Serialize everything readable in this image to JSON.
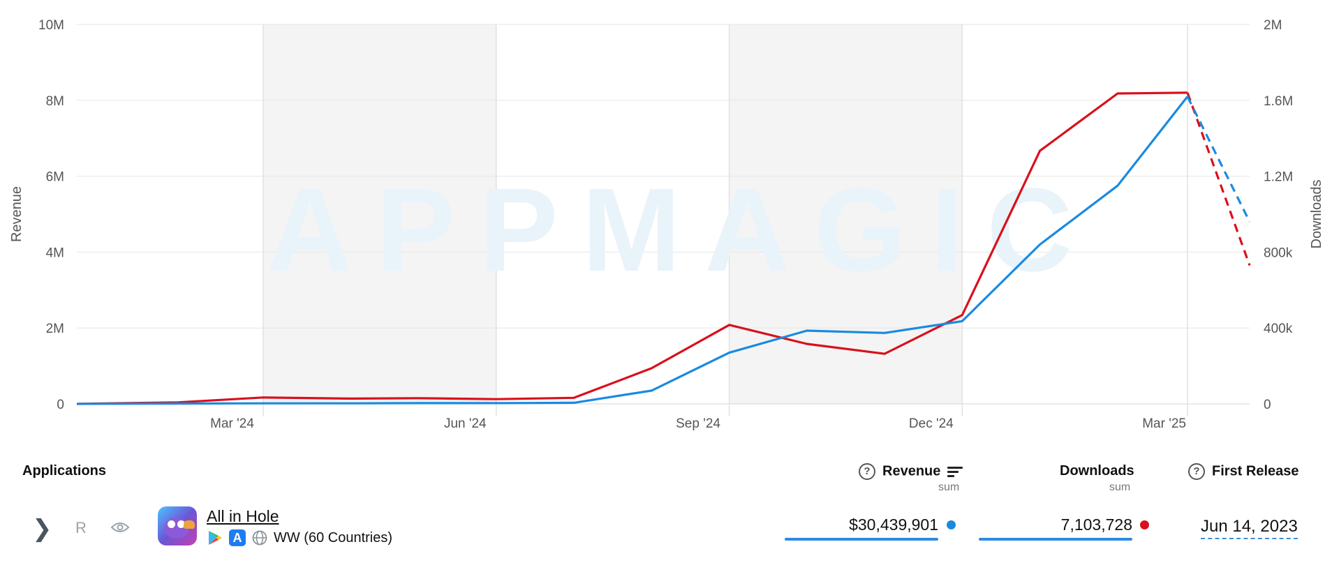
{
  "chart_data": {
    "type": "line",
    "watermark": "APPMAGIC",
    "x_labels": [
      "Mar '24",
      "Jun '24",
      "Sep '24",
      "Dec '24",
      "Mar '25"
    ],
    "x_label_months": [
      2,
      5,
      8,
      11,
      14
    ],
    "shaded_quarters": [
      [
        2,
        5
      ],
      [
        8,
        11
      ]
    ],
    "gridline_months": [
      2.4,
      5.4,
      8.4,
      11.4,
      14.3
    ],
    "x_range": [
      0,
      15.1
    ],
    "left_axis": {
      "title": "Revenue",
      "ticks": [
        "0",
        "2M",
        "4M",
        "6M",
        "8M",
        "10M"
      ],
      "range": [
        0,
        10000000
      ]
    },
    "right_axis": {
      "title": "Downloads",
      "ticks": [
        "0",
        "400k",
        "800k",
        "1.2M",
        "1.6M",
        "2M"
      ],
      "range": [
        0,
        2000000
      ]
    },
    "series": [
      {
        "name": "Revenue",
        "axis": "left",
        "color": "#1a8ae0",
        "points": [
          [
            0,
            0
          ],
          [
            1.3,
            10000
          ],
          [
            2.4,
            15000
          ],
          [
            3.5,
            15000
          ],
          [
            4.4,
            20000
          ],
          [
            5.4,
            20000
          ],
          [
            6.4,
            30000
          ],
          [
            7.4,
            350000
          ],
          [
            8.4,
            1350000
          ],
          [
            9.4,
            1930000
          ],
          [
            10.4,
            1870000
          ],
          [
            11.4,
            2180000
          ],
          [
            12.4,
            4200000
          ],
          [
            13.4,
            5750000
          ],
          [
            14.3,
            8100000
          ]
        ],
        "projection": [
          [
            14.3,
            8100000
          ],
          [
            15.1,
            4800000
          ]
        ]
      },
      {
        "name": "Downloads",
        "axis": "right",
        "color": "#d9101c",
        "points": [
          [
            0,
            0
          ],
          [
            1.3,
            8000
          ],
          [
            2.4,
            34000
          ],
          [
            3.5,
            28000
          ],
          [
            4.4,
            30000
          ],
          [
            5.4,
            25000
          ],
          [
            6.4,
            32000
          ],
          [
            7.4,
            188000
          ],
          [
            8.4,
            416000
          ],
          [
            9.4,
            316000
          ],
          [
            10.4,
            264000
          ],
          [
            11.4,
            468000
          ],
          [
            12.4,
            1334000
          ],
          [
            13.4,
            1636000
          ],
          [
            14.3,
            1640000
          ]
        ],
        "projection": [
          [
            14.3,
            1640000
          ],
          [
            15.1,
            730000
          ]
        ]
      }
    ]
  },
  "table": {
    "headers": {
      "applications": "Applications",
      "revenue": "Revenue",
      "revenue_sub": "sum",
      "downloads": "Downloads",
      "downloads_sub": "sum",
      "first_release": "First Release"
    },
    "row": {
      "expand_icon": "chevron-right-icon",
      "badge": "R",
      "watch_icon": "eye-icon",
      "name": "All in Hole",
      "stores": [
        "google-play-icon",
        "app-store-icon"
      ],
      "region": "WW (60 Countries)",
      "revenue": "$30,439,901",
      "revenue_color": "#1a8ae0",
      "downloads": "7,103,728",
      "downloads_color": "#d9101c",
      "first_release": "Jun 14, 2023"
    }
  }
}
